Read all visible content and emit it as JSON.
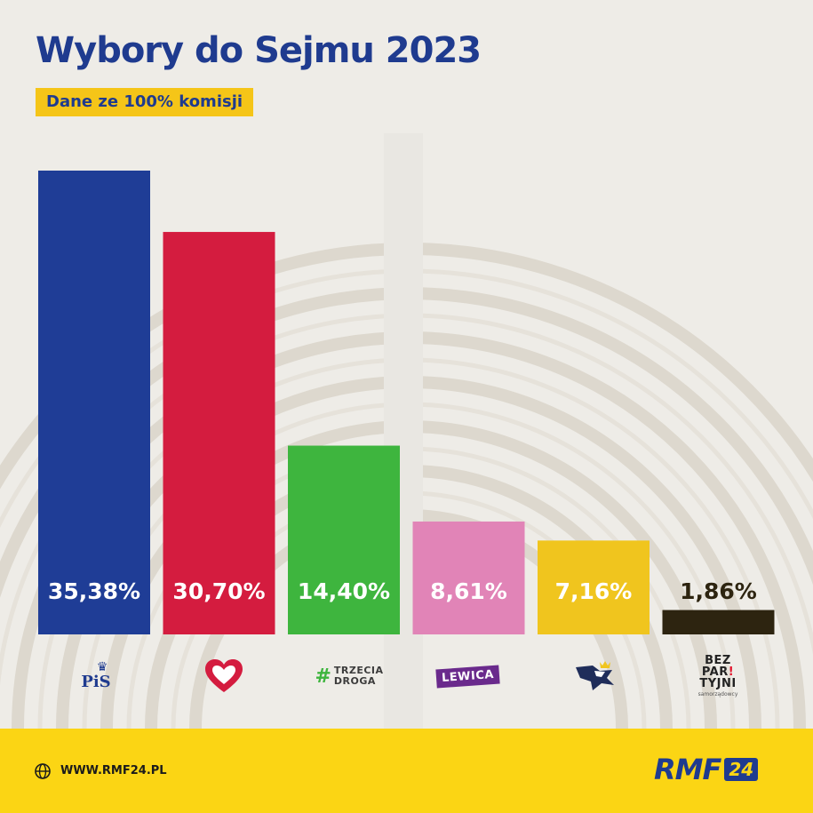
{
  "header": {
    "title": "Wybory do Sejmu 2023",
    "subtitle": "Dane ze 100% komisji"
  },
  "colors": {
    "accent_blue": "#1f3b8f",
    "accent_yellow": "#fbd514",
    "pis": "#1f3d96",
    "ko": "#d41c3f",
    "trzecia_droga": "#3eb53e",
    "lewica": "#e184b7",
    "konfederacja": "#f0c51e",
    "bezpartyjni": "#2d2410"
  },
  "logos": {
    "pis": "PiS",
    "ko_icon": "heart-icon",
    "trzecia_droga": [
      "TRZECIA",
      "DROGA"
    ],
    "lewica": "LEWICA",
    "konfederacja_icon": "eagle-icon",
    "bezpartyjni": [
      "BEZ",
      "PAR",
      "TYJNI"
    ],
    "bezpartyjni_small": "samorządowcy"
  },
  "footer": {
    "site": "WWW.RMF24.PL",
    "brand": "RMF",
    "brand_number": "24"
  },
  "chart_data": {
    "type": "bar",
    "title": "Wybory do Sejmu 2023",
    "subtitle": "Dane ze 100% komisji",
    "xlabel": "",
    "ylabel": "",
    "ylim": [
      0,
      35.38
    ],
    "grid": false,
    "legend": "none",
    "categories": [
      "PiS",
      "KO",
      "Trzecia Droga",
      "Lewica",
      "Konfederacja",
      "Bezpartyjni Samorządowcy"
    ],
    "values": [
      35.38,
      30.7,
      14.4,
      8.61,
      7.16,
      1.86
    ],
    "data_labels": [
      "35,38%",
      "30,70%",
      "14,40%",
      "8,61%",
      "7,16%",
      "1,86%"
    ],
    "colors": [
      "#1f3d96",
      "#d41c3f",
      "#3eb53e",
      "#e184b7",
      "#f0c51e",
      "#2d2410"
    ],
    "label_colors": [
      "#ffffff",
      "#ffffff",
      "#ffffff",
      "#ffffff",
      "#ffffff",
      "#2d2410"
    ]
  }
}
